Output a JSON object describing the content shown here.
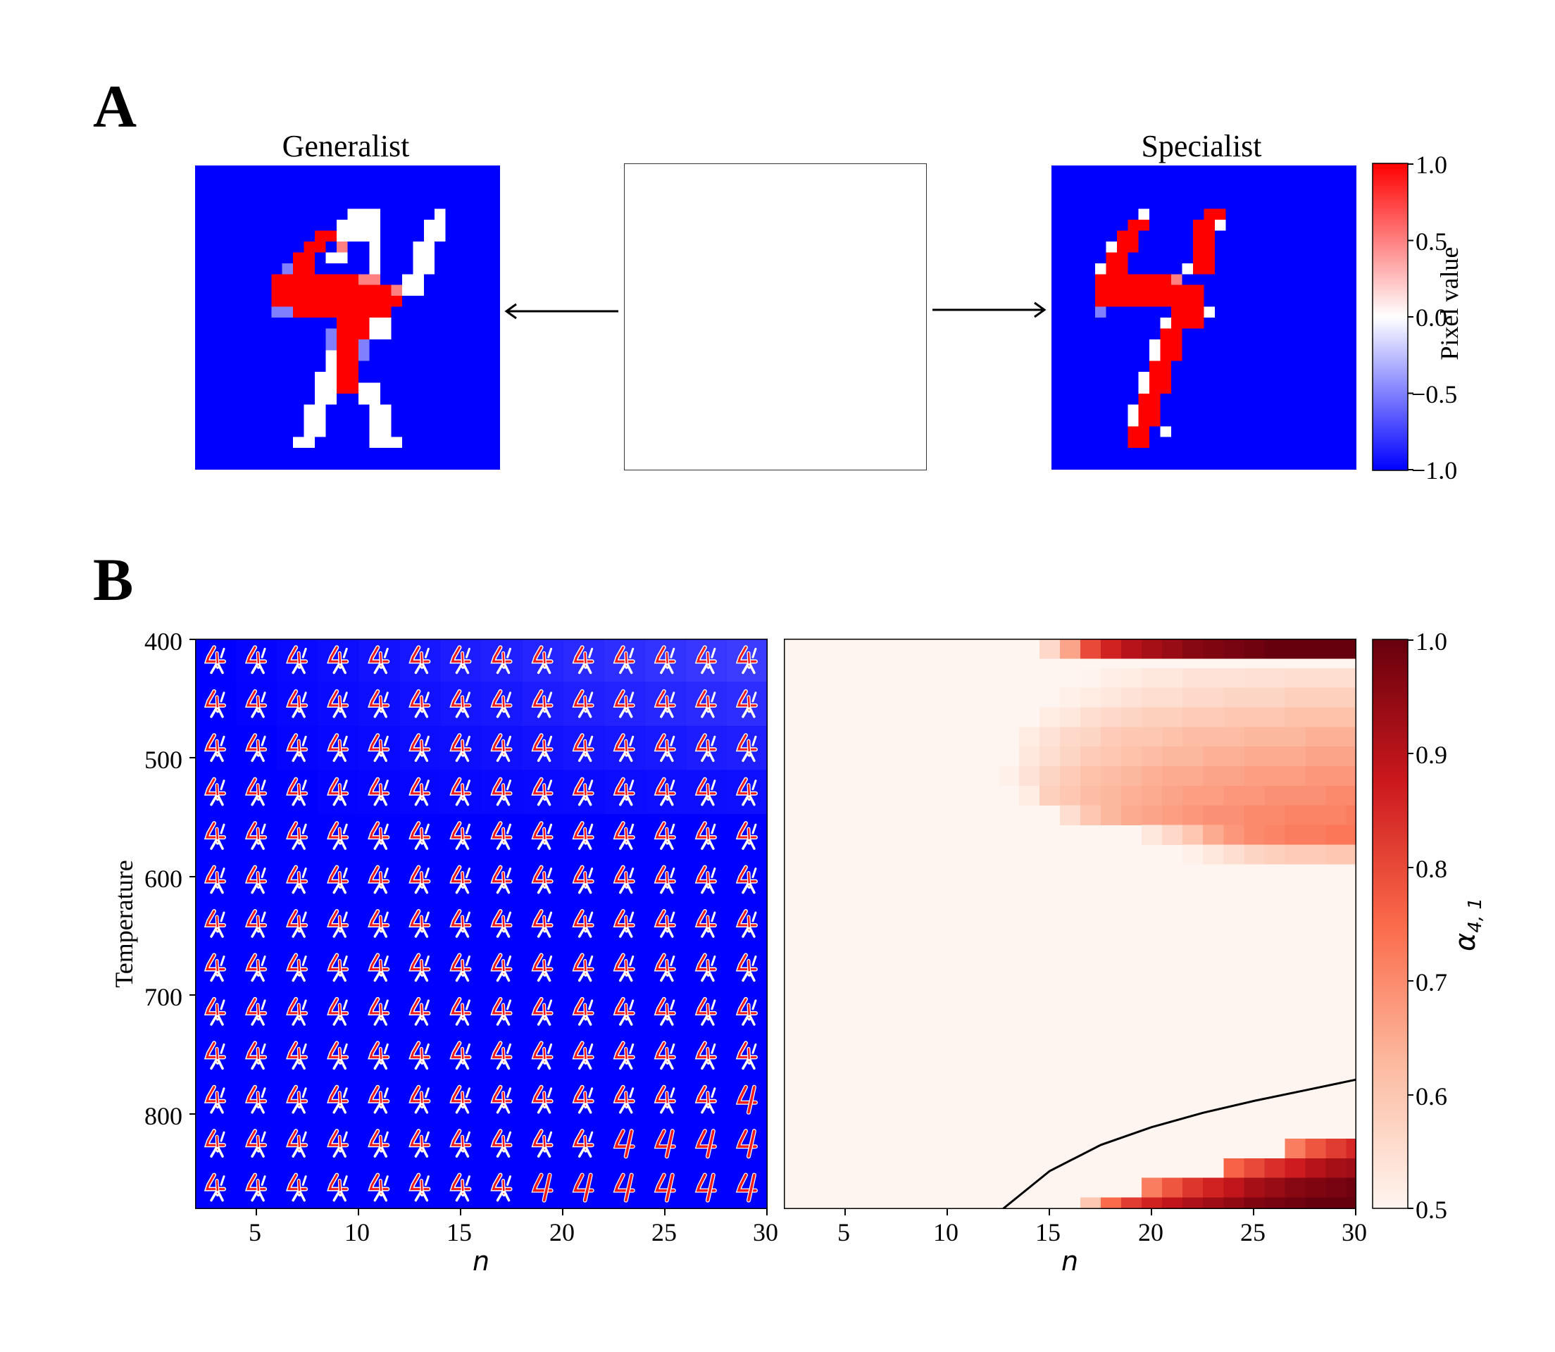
{
  "panelA": {
    "letter": "A",
    "left_title": "Generalist",
    "right_title": "Specialist",
    "colorbar": {
      "label": "Pixel value",
      "ticks": [
        "1.0",
        "0.5",
        "0.0",
        "−0.5",
        "−1.0"
      ],
      "colormap": [
        "#0000ff",
        "#ffffff",
        "#ff0000"
      ],
      "range": [
        -1.0,
        1.0
      ]
    },
    "icons": [
      "left-arrow-icon",
      "right-arrow-icon"
    ]
  },
  "panelB": {
    "letter": "B",
    "ylabel": "Temperature",
    "xlabel": "n",
    "cbar_label": "α",
    "cbar_sub": "4, 1",
    "cbar_ticks": [
      "1.0",
      "0.9",
      "0.8",
      "0.7",
      "0.6",
      "0.5"
    ],
    "colormap": [
      "#fff5f0",
      "#fcbba1",
      "#fb6a4a",
      "#cb181d",
      "#67000d"
    ],
    "y_ticks": [
      "400",
      "500",
      "600",
      "700",
      "800"
    ],
    "x_ticks": [
      "5",
      "10",
      "15",
      "20",
      "25",
      "30"
    ]
  },
  "chart_data": [
    {
      "type": "heatmap",
      "title": "",
      "xlabel": "n",
      "ylabel": "Temperature",
      "xlim": [
        2,
        30
      ],
      "ylim": [
        880,
        400
      ],
      "x_ticks": [
        5,
        10,
        15,
        20,
        25,
        30
      ],
      "y_ticks": [
        400,
        500,
        600,
        700,
        800
      ],
      "grid_n": [
        3,
        5,
        7,
        9,
        11,
        13,
        15,
        17,
        19,
        21,
        23,
        25,
        27,
        29
      ],
      "grid_T": [
        418,
        455,
        492,
        529,
        566,
        603,
        640,
        677,
        714,
        751,
        788,
        825,
        862
      ],
      "specialist_cells": [
        {
          "row": 10,
          "from_col": 13
        },
        {
          "row": 11,
          "from_col": 10
        },
        {
          "row": 12,
          "from_col": 8
        }
      ]
    },
    {
      "type": "heatmap",
      "title": "",
      "xlabel": "n",
      "value_label": "α 4,1",
      "xlim": [
        2,
        30
      ],
      "ylim": [
        880,
        400
      ],
      "x_ticks": [
        5,
        10,
        15,
        20,
        25,
        30
      ],
      "value_range": [
        0.5,
        1.0
      ],
      "n_values": [
        2,
        3,
        4,
        5,
        6,
        7,
        8,
        9,
        10,
        11,
        12,
        13,
        14,
        15,
        16,
        17,
        18,
        19,
        20,
        21,
        22,
        23,
        24,
        25,
        26,
        27,
        28,
        29,
        30
      ],
      "T_values": [
        400,
        416.5,
        433,
        449.5,
        466,
        482.5,
        499,
        515.5,
        532,
        548.5,
        565,
        581.5,
        598,
        614.5,
        631,
        647.5,
        664,
        680.5,
        697,
        713.5,
        730,
        746.5,
        763,
        779.5,
        796,
        812.5,
        829,
        845.5,
        862,
        878.5
      ],
      "upper_region": [
        {
          "row": 2,
          "from_n": 17,
          "values": [
            0.505,
            0.515,
            0.52,
            0.53,
            0.53,
            0.54,
            0.54,
            0.54,
            0.545,
            0.545,
            0.55,
            0.55,
            0.55,
            0.55
          ]
        },
        {
          "row": 3,
          "from_n": 16,
          "values": [
            0.51,
            0.52,
            0.53,
            0.54,
            0.55,
            0.55,
            0.56,
            0.56,
            0.57,
            0.57,
            0.57,
            0.58,
            0.58,
            0.58,
            0.58
          ]
        },
        {
          "row": 4,
          "from_n": 15,
          "values": [
            0.52,
            0.53,
            0.55,
            0.56,
            0.57,
            0.58,
            0.58,
            0.59,
            0.59,
            0.6,
            0.6,
            0.6,
            0.61,
            0.61,
            0.61,
            0.61
          ]
        },
        {
          "row": 5,
          "from_n": 14,
          "values": [
            0.52,
            0.54,
            0.56,
            0.57,
            0.59,
            0.6,
            0.6,
            0.61,
            0.62,
            0.62,
            0.62,
            0.63,
            0.63,
            0.63,
            0.64,
            0.64,
            0.64
          ]
        },
        {
          "row": 6,
          "from_n": 14,
          "values": [
            0.53,
            0.55,
            0.57,
            0.59,
            0.6,
            0.61,
            0.62,
            0.63,
            0.63,
            0.64,
            0.64,
            0.65,
            0.65,
            0.65,
            0.66,
            0.66,
            0.66
          ]
        },
        {
          "row": 7,
          "from_n": 13,
          "values": [
            0.51,
            0.54,
            0.57,
            0.59,
            0.61,
            0.62,
            0.63,
            0.64,
            0.65,
            0.65,
            0.66,
            0.66,
            0.67,
            0.67,
            0.67,
            0.68,
            0.68,
            0.68
          ]
        },
        {
          "row": 8,
          "from_n": 13,
          "values": [
            0.5,
            0.52,
            0.58,
            0.6,
            0.62,
            0.63,
            0.64,
            0.65,
            0.66,
            0.67,
            0.67,
            0.68,
            0.68,
            0.69,
            0.69,
            0.69,
            0.7,
            0.7
          ]
        },
        {
          "row": 9,
          "from_n": 16,
          "values": [
            0.55,
            0.6,
            0.63,
            0.65,
            0.66,
            0.67,
            0.68,
            0.69,
            0.69,
            0.7,
            0.7,
            0.71,
            0.71,
            0.71,
            0.72
          ]
        },
        {
          "row": 10,
          "from_n": 20,
          "values": [
            0.53,
            0.56,
            0.6,
            0.65,
            0.68,
            0.7,
            0.71,
            0.72,
            0.72,
            0.73,
            0.73
          ]
        },
        {
          "row": 11,
          "from_n": 22,
          "values": [
            0.51,
            0.53,
            0.55,
            0.57,
            0.58,
            0.59,
            0.59,
            0.6,
            0.6
          ]
        }
      ],
      "lower_region": [
        {
          "row": 26,
          "from_n": 27,
          "values": [
            0.72,
            0.78,
            0.82,
            0.85
          ]
        },
        {
          "row": 27,
          "from_n": 24,
          "values": [
            0.76,
            0.8,
            0.84,
            0.87,
            0.9,
            0.92,
            0.93
          ]
        },
        {
          "row": 28,
          "from_n": 20,
          "values": [
            0.72,
            0.78,
            0.83,
            0.86,
            0.89,
            0.92,
            0.94,
            0.96,
            0.97,
            0.98,
            0.99
          ]
        },
        {
          "row": 29,
          "from_n": 17,
          "values": [
            0.6,
            0.75,
            0.82,
            0.86,
            0.89,
            0.91,
            0.93,
            0.95,
            0.97,
            0.98,
            0.99,
            1.0,
            1.0,
            1.0
          ]
        },
        {
          "row": 30,
          "from_n": 15,
          "values": [
            0.56,
            0.66,
            0.8,
            0.86,
            0.9,
            0.92,
            0.94,
            0.96,
            0.97,
            0.98,
            0.99,
            1.0,
            1.0,
            1.0,
            1.0,
            1.0
          ]
        }
      ],
      "boundary_curve": {
        "n": [
          12.7,
          15,
          17.5,
          20,
          22.5,
          25,
          27.5,
          30
        ],
        "T": [
          880,
          848,
          826,
          811,
          799,
          789,
          780,
          771
        ]
      }
    }
  ]
}
